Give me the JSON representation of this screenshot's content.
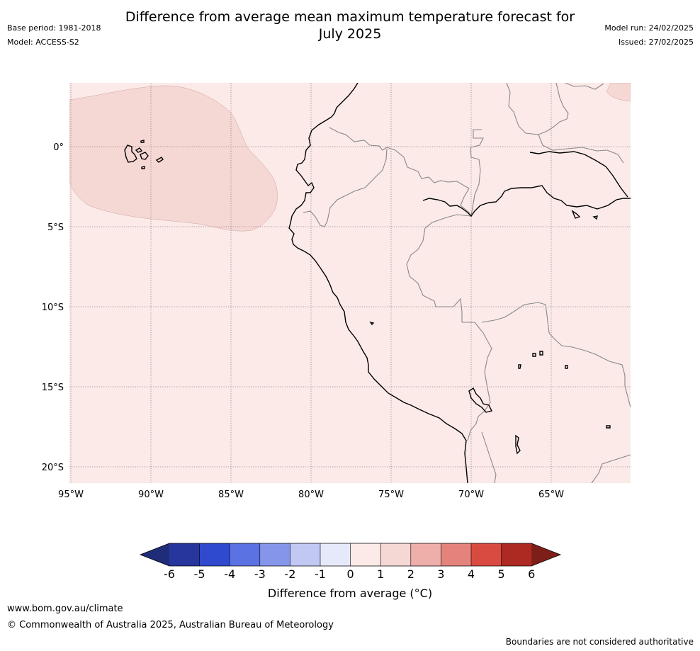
{
  "title": {
    "line1": "Difference from average mean maximum temperature forecast for",
    "line2": "July 2025"
  },
  "meta_left": {
    "base_period": "Base period: 1981-2018",
    "model": "Model: ACCESS-S2"
  },
  "meta_right": {
    "model_run": "Model run: 24/02/2025",
    "issued": "Issued: 27/02/2025"
  },
  "map": {
    "lon_labels": [
      "95°W",
      "90°W",
      "85°W",
      "80°W",
      "75°W",
      "70°W",
      "65°W"
    ],
    "lat_labels": [
      "0°",
      "5°S",
      "10°S",
      "15°S",
      "20°S"
    ],
    "background_color": "#fbeae8",
    "anomaly_patch_color": "#f5d7d4",
    "coastline_color": "#000000",
    "border_color": "#888888",
    "gridline_style": "dotted"
  },
  "colorbar": {
    "ticks": [
      "-6",
      "-5",
      "-4",
      "-3",
      "-2",
      "-1",
      "0",
      "1",
      "2",
      "3",
      "4",
      "5",
      "6"
    ],
    "colors": [
      "#27369c",
      "#2f49cf",
      "#5b72e3",
      "#8596ea",
      "#c0c8f3",
      "#e6e9f9",
      "#fbeae8",
      "#f5d7d4",
      "#eeaeaa",
      "#e4837c",
      "#d94a41",
      "#ad2a22"
    ],
    "under_color": "#1f2c78",
    "over_color": "#7e1e18",
    "label": "Difference from average (°C)"
  },
  "footer": {
    "url": "www.bom.gov.au/climate",
    "copyright": "© Commonwealth of Australia 2025, Australian Bureau of Meteorology",
    "disclaimer": "Boundaries are not considered authoritative"
  }
}
